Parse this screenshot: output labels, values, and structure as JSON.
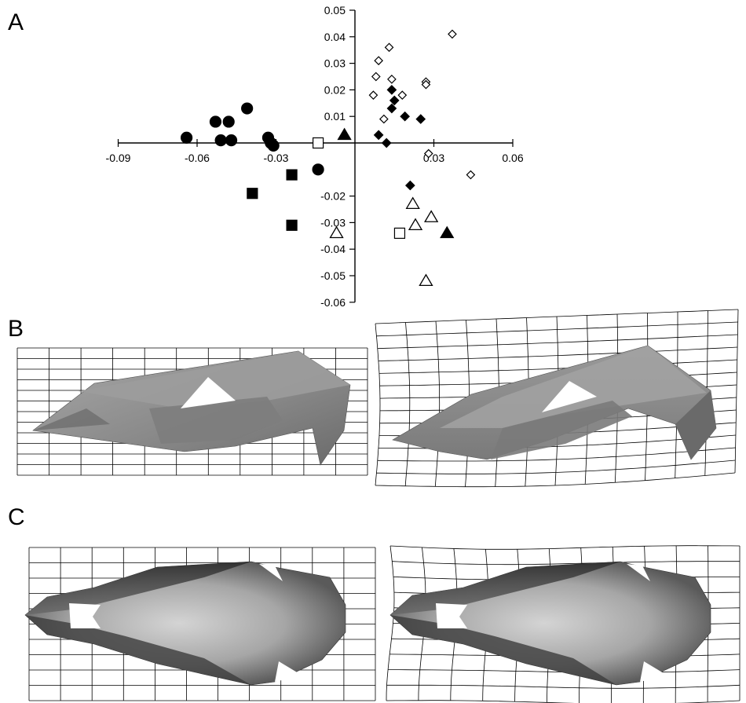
{
  "panel_labels": {
    "a": "A",
    "b": "B",
    "c": "C"
  },
  "chart_data": {
    "type": "scatter",
    "xlim": [
      -0.09,
      0.06
    ],
    "ylim": [
      -0.06,
      0.05
    ],
    "x_ticks": [
      -0.09,
      -0.06,
      -0.03,
      0.03,
      0.06
    ],
    "x_tick_labels": [
      "-0.09",
      "-0.06",
      "-0.03",
      "0.03",
      "0.06"
    ],
    "y_ticks": [
      0.05,
      0.04,
      0.03,
      0.02,
      0.01,
      -0.02,
      -0.03,
      -0.04,
      -0.05,
      -0.06
    ],
    "y_tick_labels": [
      "0.05",
      "0.04",
      "0.03",
      "0.02",
      "0.01",
      "-0.02",
      "-0.03",
      "-0.04",
      "-0.05",
      "-0.06"
    ],
    "grid": false,
    "series": [
      {
        "marker": "filled-circle",
        "color": "#000000",
        "points": [
          [
            -0.064,
            0.002
          ],
          [
            -0.053,
            0.008
          ],
          [
            -0.051,
            0.001
          ],
          [
            -0.048,
            0.008
          ],
          [
            -0.047,
            0.001
          ],
          [
            -0.041,
            0.013
          ],
          [
            -0.033,
            0.002
          ],
          [
            -0.032,
            0.0
          ],
          [
            -0.031,
            -0.001
          ],
          [
            -0.014,
            -0.01
          ]
        ]
      },
      {
        "marker": "filled-square",
        "color": "#000000",
        "points": [
          [
            -0.039,
            -0.019
          ],
          [
            -0.024,
            -0.012
          ],
          [
            -0.024,
            -0.031
          ]
        ]
      },
      {
        "marker": "open-square",
        "color": "#000000",
        "points": [
          [
            -0.014,
            0.0
          ],
          [
            0.017,
            -0.034
          ]
        ]
      },
      {
        "marker": "filled-triangle",
        "color": "#000000",
        "points": [
          [
            -0.004,
            0.003
          ],
          [
            0.035,
            -0.034
          ]
        ]
      },
      {
        "marker": "open-triangle",
        "color": "#000000",
        "points": [
          [
            -0.007,
            -0.034
          ],
          [
            0.022,
            -0.023
          ],
          [
            0.023,
            -0.031
          ],
          [
            0.029,
            -0.028
          ],
          [
            0.027,
            -0.052
          ]
        ]
      },
      {
        "marker": "filled-diamond",
        "color": "#000000",
        "points": [
          [
            0.014,
            0.02
          ],
          [
            0.015,
            0.016
          ],
          [
            0.014,
            0.013
          ],
          [
            0.009,
            0.003
          ],
          [
            0.012,
            0.0
          ],
          [
            0.019,
            0.01
          ],
          [
            0.025,
            0.009
          ],
          [
            0.021,
            -0.016
          ]
        ]
      },
      {
        "marker": "open-diamond",
        "color": "#000000",
        "points": [
          [
            0.037,
            0.041
          ],
          [
            0.013,
            0.036
          ],
          [
            0.009,
            0.031
          ],
          [
            0.008,
            0.025
          ],
          [
            0.014,
            0.024
          ],
          [
            0.007,
            0.018
          ],
          [
            0.018,
            0.018
          ],
          [
            0.027,
            0.023
          ],
          [
            0.027,
            0.022
          ],
          [
            0.011,
            0.009
          ],
          [
            0.028,
            -0.004
          ],
          [
            0.044,
            -0.012
          ]
        ]
      }
    ]
  }
}
